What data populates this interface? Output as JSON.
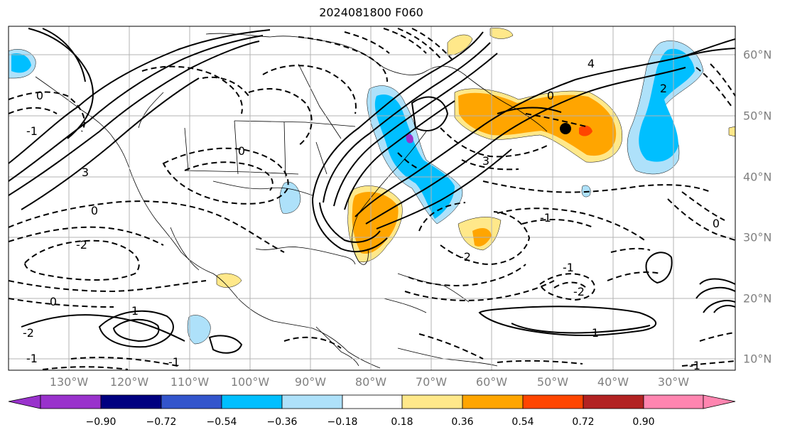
{
  "title": "2024081800 F060",
  "lon_labels": [
    "130°W",
    "120°W",
    "110°W",
    "100°W",
    "90°W",
    "80°W",
    "70°W",
    "60°W",
    "50°W",
    "40°W",
    "30°W"
  ],
  "lat_labels": [
    "60°N",
    "50°N",
    "40°N",
    "30°N",
    "20°N",
    "10°N"
  ],
  "colorbar": {
    "ticks": [
      "−0.90",
      "−0.72",
      "−0.54",
      "−0.36",
      "−0.18",
      "0.18",
      "0.36",
      "0.54",
      "0.72",
      "0.90"
    ],
    "colors": [
      "#9932cc",
      "#000080",
      "#3355cc",
      "#00bfff",
      "#aee1fa",
      "#ffffff",
      "#ffe88a",
      "#ffa500",
      "#ff4500",
      "#b22222",
      "#ff85b0"
    ]
  },
  "contour_labels": [
    "0",
    "1",
    "2",
    "3",
    "4",
    "-1",
    "-2"
  ],
  "marker": {
    "type": "black-dot"
  }
}
